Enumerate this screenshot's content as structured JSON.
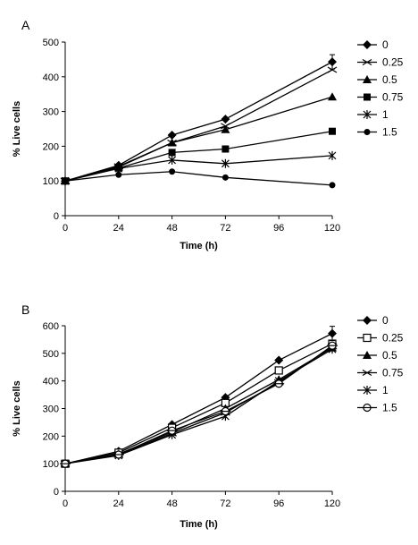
{
  "chart_data": [
    {
      "type": "line",
      "panel_label": "A",
      "xlabel": "Time (h)",
      "ylabel": "% Live cells",
      "xlim": [
        0,
        120
      ],
      "ylim": [
        0,
        500
      ],
      "x_ticks": [
        0,
        24,
        48,
        72,
        96,
        120
      ],
      "y_ticks": [
        0,
        100,
        200,
        300,
        400,
        500
      ],
      "x": [
        0,
        24,
        48,
        72,
        120
      ],
      "legend_position": "right",
      "grid": false,
      "series": [
        {
          "name": "0",
          "marker": "diamond",
          "values": [
            100,
            145,
            232,
            278,
            443
          ]
        },
        {
          "name": "0.25",
          "marker": "x",
          "values": [
            100,
            142,
            210,
            258,
            420
          ]
        },
        {
          "name": "0.5",
          "marker": "triangle",
          "values": [
            100,
            140,
            210,
            248,
            342
          ]
        },
        {
          "name": "0.75",
          "marker": "square",
          "values": [
            100,
            137,
            182,
            192,
            243
          ]
        },
        {
          "name": "1",
          "marker": "asterisk",
          "values": [
            100,
            136,
            160,
            150,
            173
          ]
        },
        {
          "name": "1.5",
          "marker": "circle",
          "values": [
            100,
            118,
            127,
            110,
            88
          ]
        }
      ]
    },
    {
      "type": "line",
      "panel_label": "B",
      "xlabel": "Time (h)",
      "ylabel": "% Live cells",
      "xlim": [
        0,
        120
      ],
      "ylim": [
        0,
        600
      ],
      "x_ticks": [
        0,
        24,
        48,
        72,
        96,
        120
      ],
      "y_ticks": [
        0,
        100,
        200,
        300,
        400,
        500,
        600
      ],
      "x": [
        0,
        24,
        48,
        72,
        96,
        120
      ],
      "legend_position": "right",
      "grid": false,
      "series": [
        {
          "name": "0",
          "marker": "diamond",
          "values": [
            100,
            145,
            242,
            340,
            475,
            572
          ]
        },
        {
          "name": "0.25",
          "marker": "open-square",
          "values": [
            100,
            140,
            230,
            320,
            438,
            535
          ]
        },
        {
          "name": "0.5",
          "marker": "triangle",
          "values": [
            100,
            135,
            215,
            300,
            405,
            520
          ]
        },
        {
          "name": "0.75",
          "marker": "x",
          "values": [
            100,
            132,
            210,
            285,
            395,
            525
          ]
        },
        {
          "name": "1",
          "marker": "asterisk",
          "values": [
            100,
            130,
            205,
            272,
            400,
            515
          ]
        },
        {
          "name": "1.5",
          "marker": "open-circle-bar",
          "values": [
            100,
            133,
            220,
            290,
            390,
            528
          ]
        }
      ]
    }
  ]
}
